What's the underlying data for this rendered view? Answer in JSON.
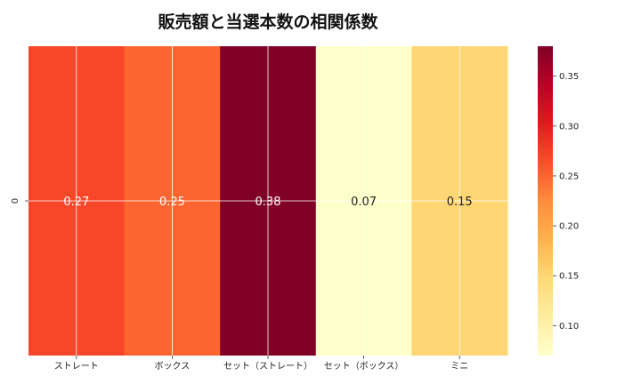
{
  "chart_data": {
    "type": "heatmap",
    "title": "販売額と当選本数の相関係数",
    "xlabel": "",
    "ylabel": "",
    "rows": [
      "0"
    ],
    "columns": [
      "ストレート",
      "ボックス",
      "セット（ストレート）",
      "セット（ボックス）",
      "ミニ"
    ],
    "values": [
      [
        0.27,
        0.25,
        0.38,
        0.07,
        0.15
      ]
    ],
    "annotations": [
      "0.27",
      "0.25",
      "0.38",
      "0.07",
      "0.15"
    ],
    "colormap": "YlOrRd",
    "color_range": [
      0.07,
      0.38
    ],
    "colorbar": {
      "position": "right",
      "ticks": [
        0.1,
        0.15,
        0.2,
        0.25,
        0.3,
        0.35
      ],
      "tick_labels": [
        "0.10",
        "0.15",
        "0.20",
        "0.25",
        "0.30",
        "0.35"
      ]
    },
    "grid": true,
    "grid_color": "#ffffff",
    "annotation_colors": {
      "dark_cell": "#ffffff",
      "light_cell": "#222222"
    },
    "colormap_stops": [
      "#ffffcc",
      "#ffeda0",
      "#fed976",
      "#feb24c",
      "#fd8d3c",
      "#fc4e2a",
      "#e31a1c",
      "#bd0026",
      "#800026"
    ]
  }
}
